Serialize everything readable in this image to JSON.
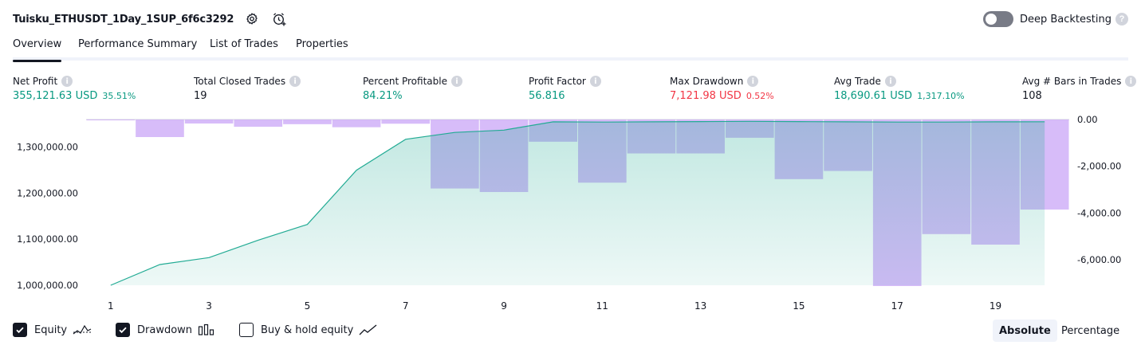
{
  "strategy": {
    "title": "Tuisku_ETHUSDT_1Day_1SUP_6f6c3292",
    "settings_icon": "gear-icon",
    "alert_icon": "alarm-clock-plus-icon"
  },
  "deep_backtesting": {
    "label": "Deep Backtesting",
    "enabled": false,
    "help": "?"
  },
  "tabs": [
    {
      "label": "Overview",
      "active": true
    },
    {
      "label": "Performance Summary",
      "active": false
    },
    {
      "label": "List of Trades",
      "active": false
    },
    {
      "label": "Properties",
      "active": false
    }
  ],
  "stats": [
    {
      "label": "Net Profit",
      "value": "355,121.63 USD",
      "sub": "35.51%",
      "color": "green"
    },
    {
      "label": "Total Closed Trades",
      "value": "19",
      "sub": "",
      "color": "dark"
    },
    {
      "label": "Percent Profitable",
      "value": "84.21%",
      "sub": "",
      "color": "green"
    },
    {
      "label": "Profit Factor",
      "value": "56.816",
      "sub": "",
      "color": "green"
    },
    {
      "label": "Max Drawdown",
      "value": "7,121.98 USD",
      "sub": "0.52%",
      "color": "red"
    },
    {
      "label": "Avg Trade",
      "value": "18,690.61 USD",
      "sub": "1,317.10%",
      "color": "green"
    },
    {
      "label": "Avg # Bars in Trades",
      "value": "108",
      "sub": "",
      "color": "dark"
    }
  ],
  "legend": {
    "equity": {
      "label": "Equity",
      "checked": true
    },
    "drawdown": {
      "label": "Drawdown",
      "checked": true
    },
    "buy_hold": {
      "label": "Buy & hold equity",
      "checked": false
    }
  },
  "mode": {
    "absolute": "Absolute",
    "percentage": "Percentage",
    "selected": "Absolute"
  },
  "colors": {
    "equity_line": "#22ab94",
    "drawdown_bar": "#7e57c2",
    "green": "#089981",
    "red": "#f23645"
  },
  "chart_data": {
    "type": "area",
    "x": [
      1,
      2,
      3,
      4,
      5,
      6,
      7,
      8,
      9,
      10,
      11,
      12,
      13,
      14,
      15,
      16,
      17,
      18,
      19,
      20
    ],
    "x_ticks": [
      "1",
      "3",
      "5",
      "7",
      "9",
      "11",
      "13",
      "15",
      "17",
      "19"
    ],
    "left_axis": {
      "ticks": [
        "1,300,000.00",
        "1,200,000.00",
        "1,100,000.00",
        "1,000,000.00"
      ],
      "tick_values": [
        1300000,
        1200000,
        1100000,
        1000000
      ],
      "ylim": [
        1000000,
        1360000
      ]
    },
    "right_axis": {
      "ticks": [
        "0.00",
        "-2,000.00",
        "-4,000.00",
        "-6,000.00"
      ],
      "tick_values": [
        0,
        -2000,
        -4000,
        -6000
      ],
      "ylim": [
        -7121.98,
        0
      ]
    },
    "series": [
      {
        "name": "Equity",
        "kind": "area",
        "values": [
          1000000,
          1045000,
          1060000,
          1098000,
          1132000,
          1250000,
          1317000,
          1332000,
          1337000,
          1355000,
          1354500,
          1355000,
          1355500,
          1356000,
          1355500,
          1355000,
          1354500,
          1354500,
          1355000,
          1355121.63
        ]
      },
      {
        "name": "Drawdown",
        "kind": "bar",
        "values": [
          -30,
          -750,
          -170,
          -310,
          -200,
          -330,
          -180,
          -2950,
          -3100,
          -950,
          -2700,
          -1450,
          -1450,
          -780,
          -2550,
          -2200,
          -7121.98,
          -4900,
          -5350,
          -3850
        ]
      }
    ],
    "grid": false
  }
}
